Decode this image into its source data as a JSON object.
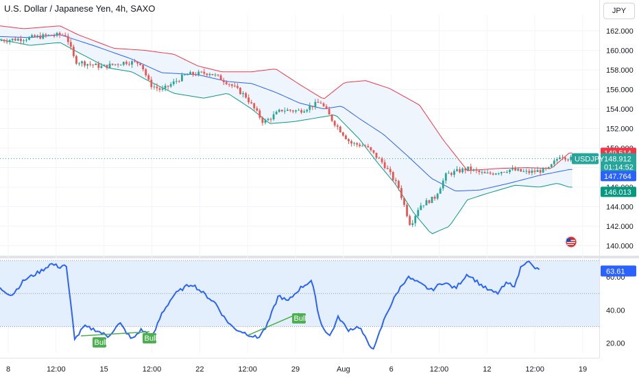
{
  "header": {
    "title": "U.S. Dollar / Japanese Yen, 4h, SAXO",
    "currency_button": "JPY"
  },
  "colors": {
    "up": "#26a69a",
    "down": "#ef5350",
    "bb_upper": "#f23645",
    "bb_basis": "#2962ff",
    "bb_lower": "#089981",
    "bb_fill": "#eef5fd",
    "rsi_line": "#2962ff",
    "rsi_band": "#e3effd",
    "bull": "#4caf50"
  },
  "chart_data": [
    {
      "type": "candlestick",
      "title": "U.S. Dollar / Japanese Yen, 4h, SAXO",
      "x_tick_labels": [
        "8",
        "12:00",
        "15",
        "12:00",
        "22",
        "12:00",
        "29",
        "Aug",
        "6",
        "12:00",
        "12",
        "12:00",
        "19"
      ],
      "y_ticks": [
        140,
        142,
        144,
        146,
        148,
        150,
        152,
        154,
        156,
        158,
        160,
        162
      ],
      "y_tick_labels": [
        "140.000",
        "142.000",
        "144.000",
        "146.000",
        "148.000",
        "150.000",
        "152.000",
        "154.000",
        "156.000",
        "158.000",
        "160.000",
        "162.000"
      ],
      "ylim": [
        139.2,
        163.6
      ],
      "approx_close_path": [
        [
          0,
          161.0
        ],
        [
          0.04,
          161.2
        ],
        [
          0.08,
          161.5
        ],
        [
          0.11,
          161.6
        ],
        [
          0.125,
          158.9
        ],
        [
          0.17,
          158.3
        ],
        [
          0.21,
          158.8
        ],
        [
          0.235,
          158.7
        ],
        [
          0.25,
          156.5
        ],
        [
          0.27,
          155.9
        ],
        [
          0.31,
          157.5
        ],
        [
          0.35,
          157.7
        ],
        [
          0.38,
          156.7
        ],
        [
          0.41,
          155.3
        ],
        [
          0.44,
          152.6
        ],
        [
          0.47,
          153.9
        ],
        [
          0.5,
          153.8
        ],
        [
          0.535,
          154.7
        ],
        [
          0.555,
          152.8
        ],
        [
          0.585,
          150.5
        ],
        [
          0.61,
          150.2
        ],
        [
          0.64,
          148.4
        ],
        [
          0.665,
          146.0
        ],
        [
          0.685,
          142.1
        ],
        [
          0.7,
          144.1
        ],
        [
          0.725,
          144.9
        ],
        [
          0.745,
          147.3
        ],
        [
          0.78,
          147.9
        ],
        [
          0.81,
          147.3
        ],
        [
          0.85,
          147.8
        ],
        [
          0.88,
          147.5
        ],
        [
          0.915,
          147.8
        ],
        [
          0.935,
          149.3
        ],
        [
          0.95,
          148.9
        ]
      ],
      "indicator": {
        "name": "Bollinger Bands",
        "upper_path": [
          [
            0,
            162.5
          ],
          [
            0.04,
            162.2
          ],
          [
            0.1,
            162.5
          ],
          [
            0.13,
            161.6
          ],
          [
            0.19,
            160.2
          ],
          [
            0.24,
            160.0
          ],
          [
            0.29,
            159.6
          ],
          [
            0.33,
            158.4
          ],
          [
            0.37,
            157.8
          ],
          [
            0.42,
            157.8
          ],
          [
            0.46,
            158.1
          ],
          [
            0.5,
            156.5
          ],
          [
            0.54,
            155.0
          ],
          [
            0.575,
            156.7
          ],
          [
            0.61,
            156.9
          ],
          [
            0.65,
            156.1
          ],
          [
            0.7,
            154.4
          ],
          [
            0.74,
            150.8
          ],
          [
            0.78,
            147.7
          ],
          [
            0.83,
            147.9
          ],
          [
            0.88,
            148.0
          ],
          [
            0.92,
            147.9
          ],
          [
            0.95,
            149.5
          ]
        ],
        "basis_path": [
          [
            0,
            161.4
          ],
          [
            0.05,
            161.3
          ],
          [
            0.1,
            161.6
          ],
          [
            0.16,
            160.4
          ],
          [
            0.22,
            159.1
          ],
          [
            0.27,
            157.7
          ],
          [
            0.33,
            157.5
          ],
          [
            0.38,
            156.8
          ],
          [
            0.42,
            156.6
          ],
          [
            0.46,
            155.7
          ],
          [
            0.5,
            154.6
          ],
          [
            0.54,
            154.0
          ],
          [
            0.57,
            154.3
          ],
          [
            0.6,
            153.0
          ],
          [
            0.64,
            151.4
          ],
          [
            0.68,
            149.2
          ],
          [
            0.72,
            146.9
          ],
          [
            0.76,
            145.6
          ],
          [
            0.8,
            145.7
          ],
          [
            0.85,
            146.4
          ],
          [
            0.9,
            147.2
          ],
          [
            0.95,
            147.8
          ]
        ],
        "lower_path": [
          [
            0,
            161.1
          ],
          [
            0.05,
            160.5
          ],
          [
            0.1,
            160.8
          ],
          [
            0.13,
            159.8
          ],
          [
            0.18,
            158.2
          ],
          [
            0.22,
            157.8
          ],
          [
            0.25,
            156.8
          ],
          [
            0.29,
            155.6
          ],
          [
            0.34,
            155.1
          ],
          [
            0.38,
            155.6
          ],
          [
            0.42,
            154.0
          ],
          [
            0.45,
            152.5
          ],
          [
            0.49,
            152.7
          ],
          [
            0.53,
            153.1
          ],
          [
            0.56,
            153.4
          ],
          [
            0.6,
            150.9
          ],
          [
            0.63,
            148.5
          ],
          [
            0.66,
            146.3
          ],
          [
            0.69,
            143.4
          ],
          [
            0.72,
            141.2
          ],
          [
            0.75,
            142.0
          ],
          [
            0.78,
            144.7
          ],
          [
            0.81,
            145.3
          ],
          [
            0.86,
            146.2
          ],
          [
            0.9,
            146.0
          ],
          [
            0.93,
            146.4
          ],
          [
            0.95,
            146.0
          ]
        ]
      },
      "labels": {
        "symbol": "USDJPY",
        "upper_band": "149.514",
        "last_price": "148.912",
        "countdown": "01:14:52",
        "basis": "147.764",
        "lower_band": "146.013"
      }
    },
    {
      "type": "line",
      "title": "",
      "y_ticks": [
        20,
        40,
        60
      ],
      "y_tick_labels": [
        "20.00",
        "40.00",
        "60.00"
      ],
      "ylim": [
        14,
        70
      ],
      "band": [
        30,
        70
      ],
      "mid": 50,
      "last_value_label": "63.61",
      "annotations": [
        "Bull",
        "Bull",
        "Bull"
      ],
      "approx_path": [
        [
          0,
          53
        ],
        [
          0.02,
          49
        ],
        [
          0.04,
          58
        ],
        [
          0.07,
          64
        ],
        [
          0.085,
          68
        ],
        [
          0.1,
          66
        ],
        [
          0.11,
          68
        ],
        [
          0.125,
          22
        ],
        [
          0.14,
          30
        ],
        [
          0.16,
          28
        ],
        [
          0.18,
          24
        ],
        [
          0.2,
          32
        ],
        [
          0.22,
          22
        ],
        [
          0.235,
          28
        ],
        [
          0.255,
          24
        ],
        [
          0.27,
          38
        ],
        [
          0.29,
          49
        ],
        [
          0.305,
          53
        ],
        [
          0.32,
          56
        ],
        [
          0.34,
          50
        ],
        [
          0.36,
          44
        ],
        [
          0.375,
          35
        ],
        [
          0.39,
          29
        ],
        [
          0.41,
          26
        ],
        [
          0.43,
          23
        ],
        [
          0.445,
          30
        ],
        [
          0.465,
          49
        ],
        [
          0.48,
          45
        ],
        [
          0.5,
          53
        ],
        [
          0.52,
          58
        ],
        [
          0.535,
          32
        ],
        [
          0.55,
          24
        ],
        [
          0.565,
          36
        ],
        [
          0.58,
          28
        ],
        [
          0.6,
          30
        ],
        [
          0.615,
          19
        ],
        [
          0.625,
          17
        ],
        [
          0.635,
          28
        ],
        [
          0.645,
          38
        ],
        [
          0.665,
          52
        ],
        [
          0.68,
          60
        ],
        [
          0.7,
          56
        ],
        [
          0.72,
          52
        ],
        [
          0.74,
          57
        ],
        [
          0.76,
          53
        ],
        [
          0.78,
          62
        ],
        [
          0.8,
          56
        ],
        [
          0.815,
          52
        ],
        [
          0.83,
          50
        ],
        [
          0.845,
          56
        ],
        [
          0.86,
          55
        ],
        [
          0.87,
          67
        ],
        [
          0.88,
          70
        ],
        [
          0.89,
          66
        ],
        [
          0.9,
          64
        ]
      ]
    }
  ]
}
